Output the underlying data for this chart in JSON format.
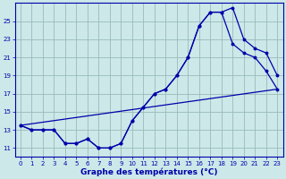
{
  "title": "Graphe des températures (°C)",
  "bg_color": "#cce8e8",
  "grid_color": "#99bbbb",
  "line_color": "#0000aa",
  "x_min": -0.5,
  "x_max": 23.5,
  "y_min": 10.0,
  "y_max": 27.0,
  "y_ticks": [
    11,
    13,
    15,
    17,
    19,
    21,
    23,
    25
  ],
  "x_ticks": [
    0,
    1,
    2,
    3,
    4,
    5,
    6,
    7,
    8,
    9,
    10,
    11,
    12,
    13,
    14,
    15,
    16,
    17,
    18,
    19,
    20,
    21,
    22,
    23
  ],
  "series1_x": [
    0,
    1,
    2,
    3,
    4,
    5,
    6,
    7,
    8,
    9,
    10,
    11,
    12,
    13,
    14,
    15,
    16,
    17,
    18,
    19,
    20,
    21,
    22,
    23
  ],
  "series1_y": [
    13.5,
    13.0,
    13.0,
    13.0,
    11.5,
    11.5,
    12.0,
    11.0,
    11.0,
    11.5,
    14.0,
    15.5,
    17.0,
    17.5,
    19.0,
    21.0,
    24.5,
    26.0,
    26.0,
    26.5,
    23.0,
    22.0,
    21.5,
    19.0
  ],
  "series2_x": [
    0,
    1,
    2,
    3,
    4,
    5,
    6,
    7,
    8,
    9,
    10,
    11,
    12,
    13,
    14,
    15,
    16,
    17,
    18,
    19,
    20,
    21,
    22,
    23
  ],
  "series2_y": [
    13.5,
    13.0,
    13.0,
    13.0,
    11.5,
    11.5,
    12.0,
    11.0,
    11.0,
    11.5,
    14.0,
    15.5,
    17.0,
    17.5,
    19.0,
    21.0,
    24.5,
    26.0,
    26.0,
    22.5,
    21.5,
    21.0,
    19.5,
    17.5
  ],
  "series3_x": [
    0,
    23
  ],
  "series3_y": [
    13.5,
    17.5
  ],
  "xlabel_fontsize": 6.5,
  "tick_fontsize": 5.0,
  "lw": 0.9,
  "ms": 1.8
}
